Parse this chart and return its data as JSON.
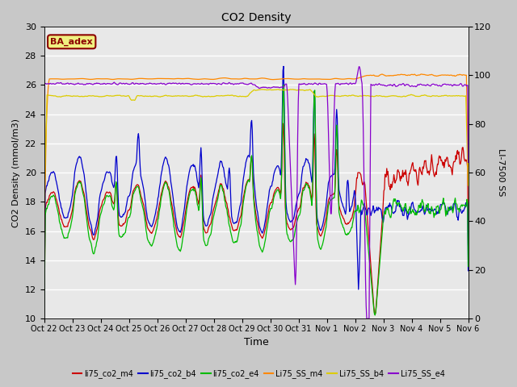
{
  "title": "CO2 Density",
  "xlabel": "Time",
  "ylabel_left": "CO2 Density (mmol/m3)",
  "ylabel_right": "LI-7500 SS",
  "ylim_left": [
    10,
    30
  ],
  "ylim_right": [
    0,
    120
  ],
  "plot_bg_color": "#e8e8e8",
  "fig_bg_color": "#c8c8c8",
  "annotation_text": "BA_adex",
  "annotation_color": "#8b0000",
  "annotation_bg": "#f0f080",
  "x_tick_labels": [
    "Oct 22",
    "Oct 23",
    "Oct 24",
    "Oct 25",
    "Oct 26",
    "Oct 27",
    "Oct 28",
    "Oct 29",
    "Oct 30",
    "Oct 31",
    "Nov 1",
    "Nov 2",
    "Nov 3",
    "Nov 4",
    "Nov 5",
    "Nov 6"
  ],
  "series": {
    "li75_co2_m4": {
      "color": "#cc0000",
      "lw": 0.9
    },
    "li75_co2_b4": {
      "color": "#0000cc",
      "lw": 0.9
    },
    "li75_co2_e4": {
      "color": "#00bb00",
      "lw": 0.9
    },
    "Li75_SS_m4": {
      "color": "#ff8800",
      "lw": 0.9
    },
    "Li75_SS_b4": {
      "color": "#ddcc00",
      "lw": 0.9
    },
    "Li75_SS_e4": {
      "color": "#8800cc",
      "lw": 0.9
    }
  },
  "legend_series": [
    {
      "label": "li75_co2_m4",
      "color": "#cc0000"
    },
    {
      "label": "li75_co2_b4",
      "color": "#0000cc"
    },
    {
      "label": "li75_co2_e4",
      "color": "#00bb00"
    },
    {
      "label": "Li75_SS_m4",
      "color": "#ff8800"
    },
    {
      "label": "Li75_SS_b4",
      "color": "#ddcc00"
    },
    {
      "label": "Li75_SS_e4",
      "color": "#8800cc"
    }
  ]
}
